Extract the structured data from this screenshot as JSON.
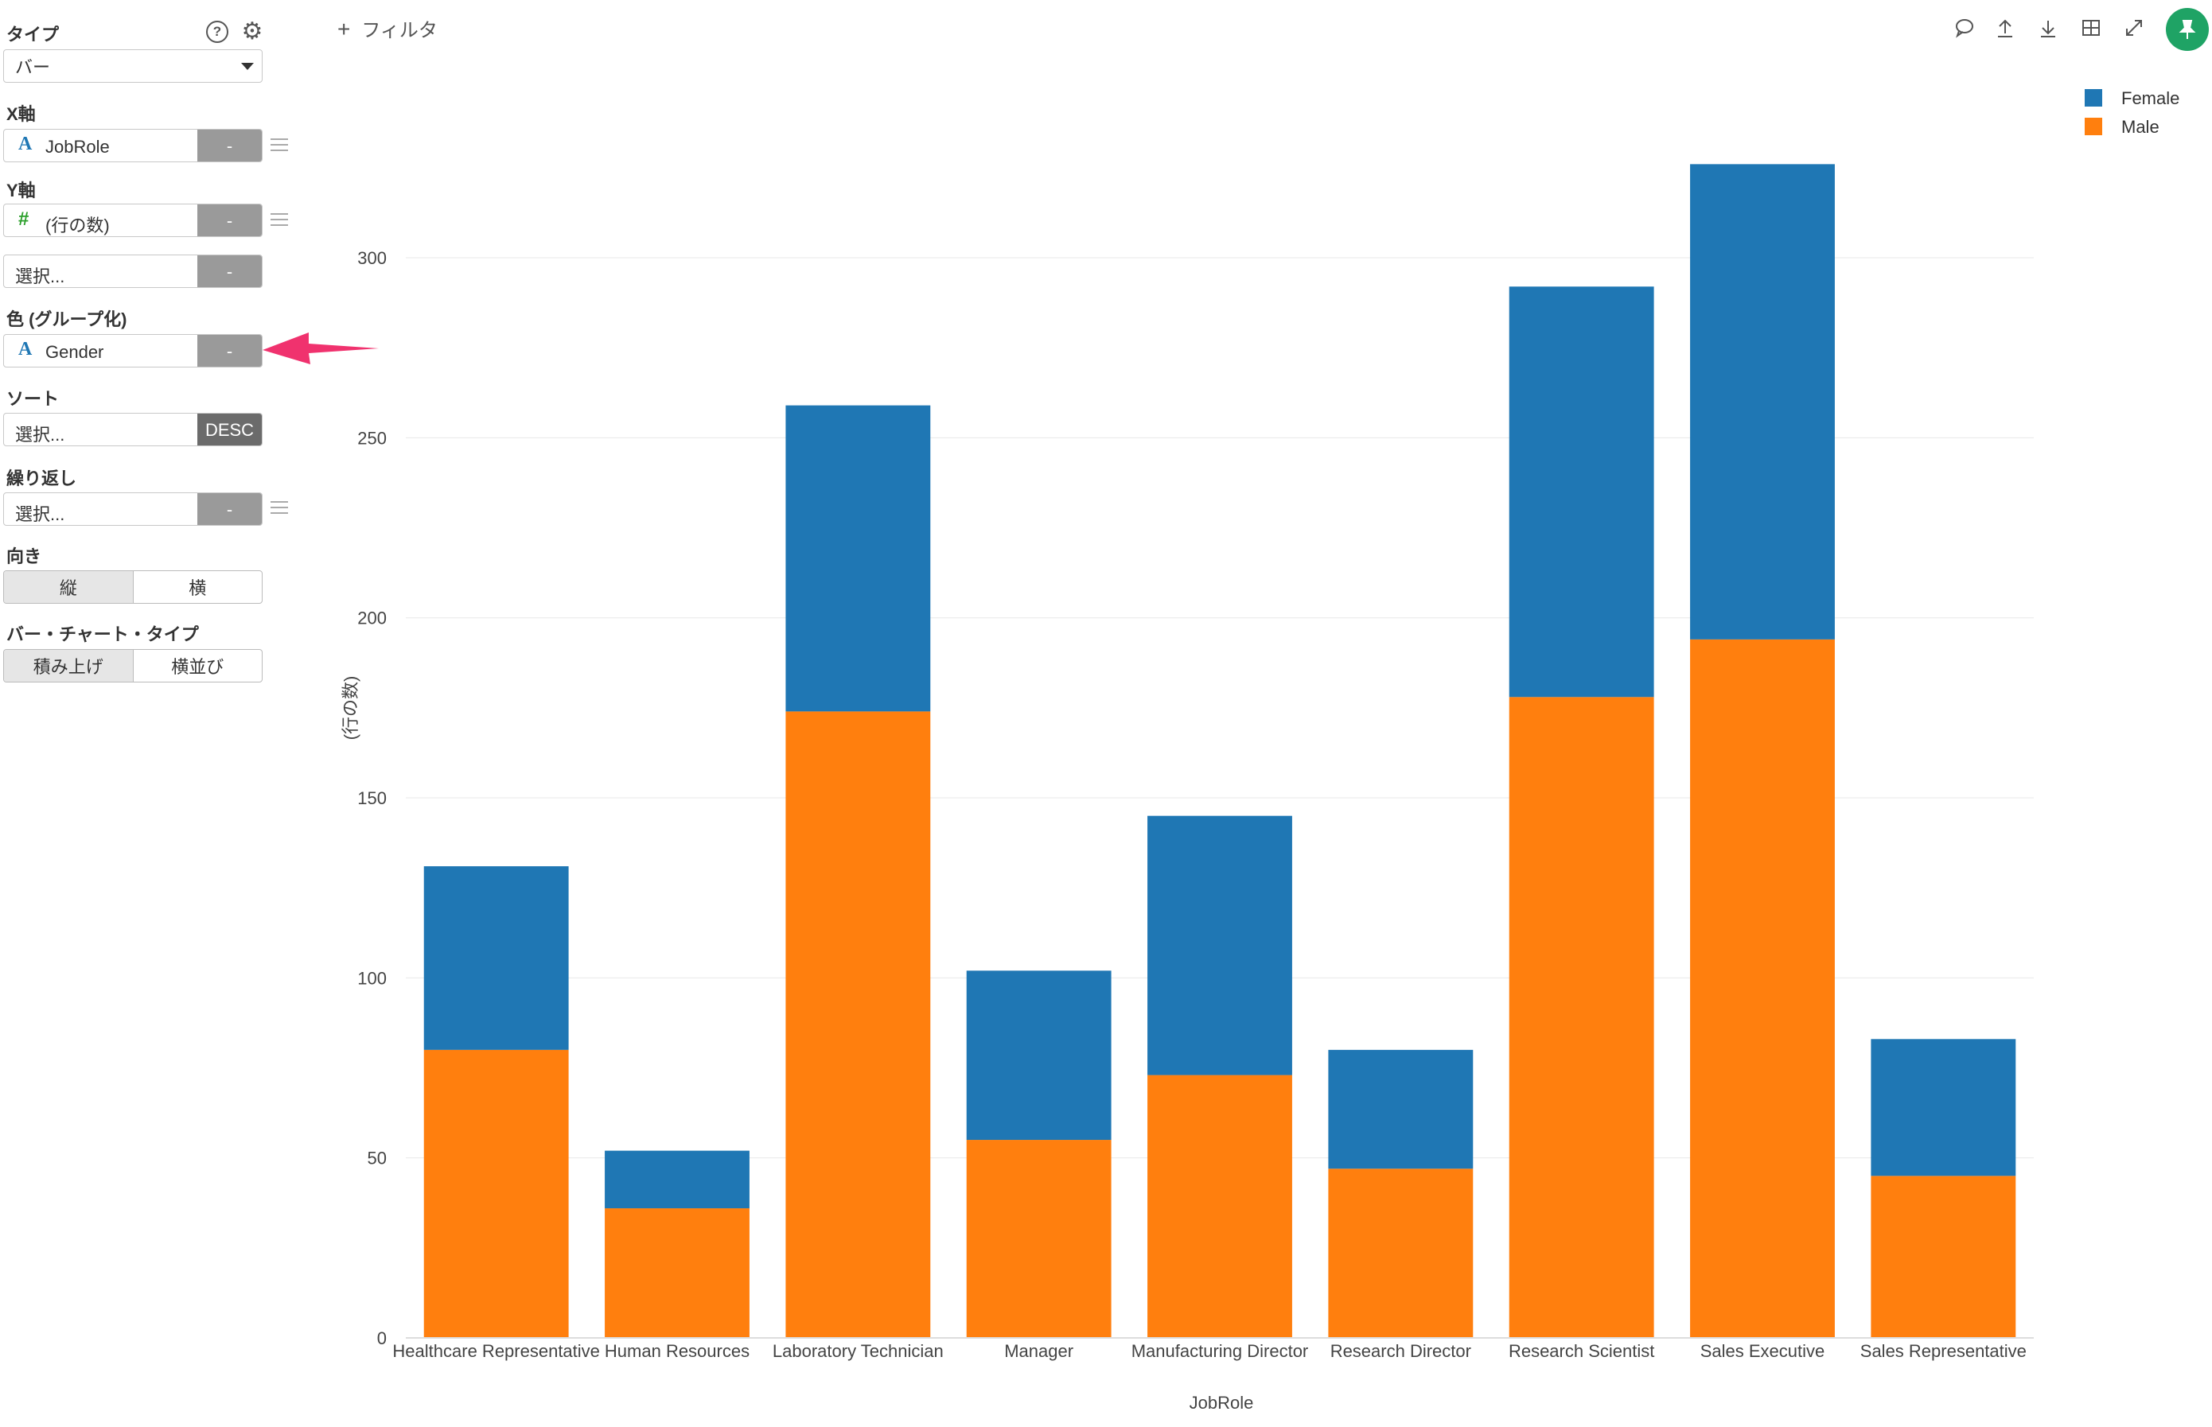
{
  "sidebar": {
    "type_label": "タイプ",
    "type_value": "バー",
    "x_label": "X軸",
    "x_field": "JobRole",
    "x_btn": "-",
    "y_label": "Y軸",
    "y_field": "(行の数)",
    "y_btn": "-",
    "y2_placeholder": "選択...",
    "y2_btn": "-",
    "color_label": "色 (グループ化)",
    "color_field": "Gender",
    "color_btn": "-",
    "sort_label": "ソート",
    "sort_placeholder": "選択...",
    "sort_btn": "DESC",
    "repeat_label": "繰り返し",
    "repeat_placeholder": "選択...",
    "repeat_btn": "-",
    "orient_label": "向き",
    "orient_options": [
      "縦",
      "横"
    ],
    "bartype_label": "バー・チャート・タイプ",
    "bartype_options": [
      "積み上げ",
      "横並び"
    ]
  },
  "toolbar": {
    "filter_plus": "+",
    "filter_label": "フィルタ"
  },
  "icons": [
    "help-icon",
    "gear-icon",
    "comment-icon",
    "upload-icon",
    "download-icon",
    "table-icon",
    "expand-icon",
    "pin-icon"
  ],
  "colors": {
    "female": "#1f77b4",
    "male": "#ff7f0e",
    "pin": "#1fa365",
    "arrow": "#f0326e"
  },
  "chart_data": {
    "type": "bar",
    "stacked": true,
    "categories": [
      "Healthcare Representative",
      "Human Resources",
      "Laboratory Technician",
      "Manager",
      "Manufacturing Director",
      "Research Director",
      "Research Scientist",
      "Sales Executive",
      "Sales Representative"
    ],
    "series": [
      {
        "name": "Male",
        "values": [
          80,
          36,
          174,
          55,
          73,
          47,
          178,
          194,
          45
        ]
      },
      {
        "name": "Female",
        "values": [
          51,
          16,
          85,
          47,
          72,
          33,
          114,
          132,
          38
        ]
      }
    ],
    "xlabel": "JobRole",
    "ylabel": "(行の数)",
    "ylim": [
      0,
      340
    ],
    "yticks": [
      0,
      50,
      100,
      150,
      200,
      250,
      300
    ],
    "grid": true,
    "legend_position": "top-right",
    "legend_order": [
      "Female",
      "Male"
    ]
  }
}
